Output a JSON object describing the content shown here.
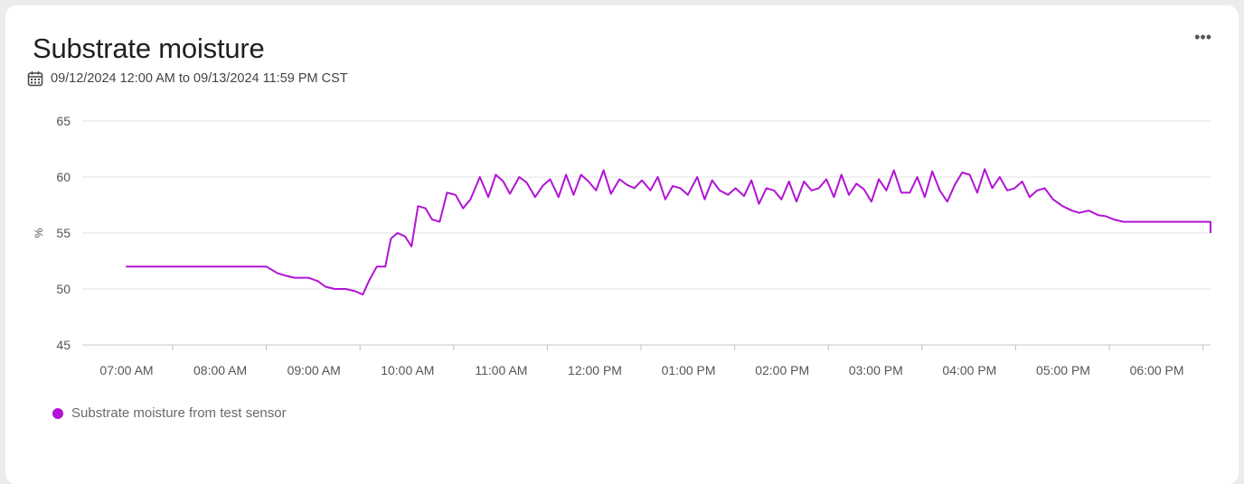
{
  "card": {
    "title": "Substrate moisture",
    "date_range": "09/12/2024 12:00 AM to 09/13/2024 11:59 PM CST",
    "more_icon": "ellipsis-icon",
    "calendar_icon": "calendar-icon"
  },
  "chart_data": {
    "type": "line",
    "ylabel": "%",
    "ylim": [
      45,
      65
    ],
    "yticks": [
      45,
      50,
      55,
      60,
      65
    ],
    "x_range_hours": [
      6.5,
      18.5
    ],
    "xticks": [
      {
        "t": 7,
        "label": "07:00 AM"
      },
      {
        "t": 8,
        "label": "08:00 AM"
      },
      {
        "t": 9,
        "label": "09:00 AM"
      },
      {
        "t": 10,
        "label": "10:00 AM"
      },
      {
        "t": 11,
        "label": "11:00 AM"
      },
      {
        "t": 12,
        "label": "12:00 PM"
      },
      {
        "t": 13,
        "label": "01:00 PM"
      },
      {
        "t": 14,
        "label": "02:00 PM"
      },
      {
        "t": 15,
        "label": "03:00 PM"
      },
      {
        "t": 16,
        "label": "04:00 PM"
      },
      {
        "t": 17,
        "label": "05:00 PM"
      },
      {
        "t": 18,
        "label": "06:00 PM"
      }
    ],
    "grid": true,
    "legend_position": "bottom-left",
    "series": [
      {
        "name": "Substrate moisture from test sensor",
        "color": "#b114d4",
        "points": [
          [
            6.5,
            52.0
          ],
          [
            7.5,
            52.0
          ],
          [
            8.0,
            52.0
          ],
          [
            8.12,
            51.4
          ],
          [
            8.2,
            51.2
          ],
          [
            8.3,
            51.0
          ],
          [
            8.45,
            51.0
          ],
          [
            8.55,
            50.7
          ],
          [
            8.63,
            50.2
          ],
          [
            8.73,
            50.0
          ],
          [
            8.85,
            50.0
          ],
          [
            8.95,
            49.8
          ],
          [
            9.03,
            49.5
          ],
          [
            9.1,
            50.8
          ],
          [
            9.18,
            52.0
          ],
          [
            9.27,
            52.0
          ],
          [
            9.33,
            54.5
          ],
          [
            9.4,
            55.0
          ],
          [
            9.48,
            54.7
          ],
          [
            9.55,
            53.8
          ],
          [
            9.62,
            57.4
          ],
          [
            9.7,
            57.2
          ],
          [
            9.77,
            56.2
          ],
          [
            9.85,
            56.0
          ],
          [
            9.93,
            58.6
          ],
          [
            10.02,
            58.4
          ],
          [
            10.1,
            57.2
          ],
          [
            10.18,
            58.0
          ],
          [
            10.28,
            60.0
          ],
          [
            10.37,
            58.2
          ],
          [
            10.45,
            60.2
          ],
          [
            10.53,
            59.6
          ],
          [
            10.6,
            58.5
          ],
          [
            10.7,
            60.0
          ],
          [
            10.78,
            59.5
          ],
          [
            10.87,
            58.2
          ],
          [
            10.95,
            59.2
          ],
          [
            11.03,
            59.8
          ],
          [
            11.12,
            58.2
          ],
          [
            11.2,
            60.2
          ],
          [
            11.28,
            58.4
          ],
          [
            11.36,
            60.2
          ],
          [
            11.44,
            59.6
          ],
          [
            11.52,
            58.8
          ],
          [
            11.6,
            60.6
          ],
          [
            11.68,
            58.5
          ],
          [
            11.77,
            59.8
          ],
          [
            11.85,
            59.3
          ],
          [
            11.93,
            59.0
          ],
          [
            12.01,
            59.7
          ],
          [
            12.1,
            58.8
          ],
          [
            12.18,
            60.0
          ],
          [
            12.26,
            58.0
          ],
          [
            12.34,
            59.2
          ],
          [
            12.42,
            59.0
          ],
          [
            12.5,
            58.4
          ],
          [
            12.6,
            60.0
          ],
          [
            12.68,
            58.0
          ],
          [
            12.76,
            59.7
          ],
          [
            12.84,
            58.8
          ],
          [
            12.93,
            58.4
          ],
          [
            13.01,
            59.0
          ],
          [
            13.1,
            58.3
          ],
          [
            13.18,
            59.7
          ],
          [
            13.26,
            57.6
          ],
          [
            13.34,
            59.0
          ],
          [
            13.42,
            58.8
          ],
          [
            13.5,
            58.0
          ],
          [
            13.58,
            59.6
          ],
          [
            13.66,
            57.8
          ],
          [
            13.74,
            59.6
          ],
          [
            13.82,
            58.8
          ],
          [
            13.9,
            59.0
          ],
          [
            13.98,
            59.8
          ],
          [
            14.06,
            58.2
          ],
          [
            14.14,
            60.2
          ],
          [
            14.22,
            58.4
          ],
          [
            14.3,
            59.4
          ],
          [
            14.38,
            58.9
          ],
          [
            14.46,
            57.8
          ],
          [
            14.54,
            59.8
          ],
          [
            14.62,
            58.8
          ],
          [
            14.7,
            60.6
          ],
          [
            14.78,
            58.6
          ],
          [
            14.87,
            58.6
          ],
          [
            14.95,
            60.0
          ],
          [
            15.03,
            58.2
          ],
          [
            15.11,
            60.5
          ],
          [
            15.19,
            58.8
          ],
          [
            15.27,
            57.8
          ],
          [
            15.35,
            59.3
          ],
          [
            15.43,
            60.4
          ],
          [
            15.51,
            60.2
          ],
          [
            15.59,
            58.6
          ],
          [
            15.67,
            60.7
          ],
          [
            15.75,
            59.0
          ],
          [
            15.83,
            60.0
          ],
          [
            15.91,
            58.8
          ],
          [
            15.99,
            59.0
          ],
          [
            16.07,
            59.6
          ],
          [
            16.15,
            58.2
          ],
          [
            16.23,
            58.8
          ],
          [
            16.31,
            59.0
          ],
          [
            16.4,
            58.0
          ],
          [
            16.5,
            57.4
          ],
          [
            16.6,
            57.0
          ],
          [
            16.68,
            56.8
          ],
          [
            16.78,
            57.0
          ],
          [
            16.88,
            56.6
          ],
          [
            16.96,
            56.5
          ],
          [
            17.05,
            56.2
          ],
          [
            17.15,
            56.0
          ],
          [
            17.5,
            56.0
          ],
          [
            18.0,
            56.0
          ],
          [
            18.2,
            56.0
          ],
          [
            18.28,
            55.4
          ],
          [
            18.38,
            55.5
          ],
          [
            18.46,
            55.4
          ],
          [
            18.55,
            55.5
          ],
          [
            18.62,
            55.2
          ],
          [
            18.7,
            55.2
          ],
          [
            18.78,
            55.0
          ],
          [
            19.05,
            55.0
          ]
        ]
      }
    ]
  }
}
